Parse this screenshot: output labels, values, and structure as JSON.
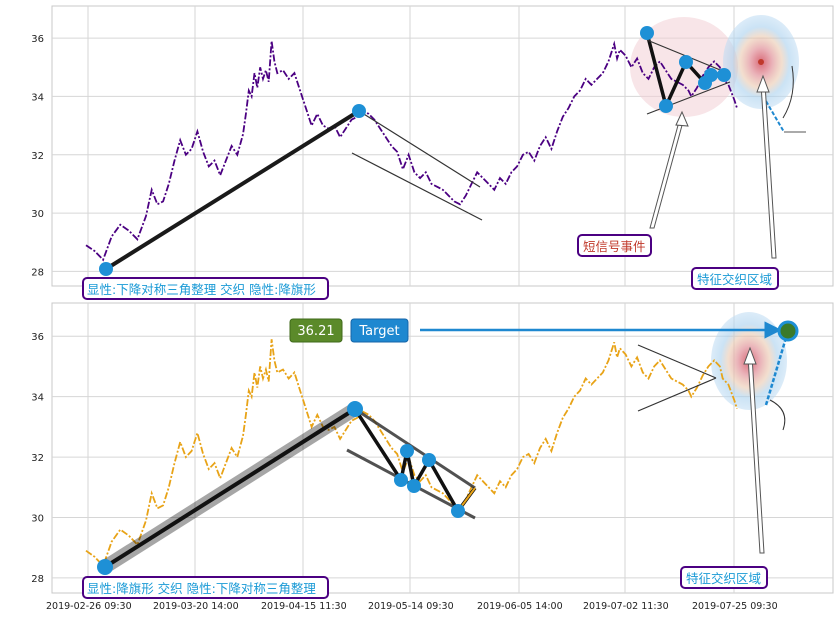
{
  "chart_data": [
    {
      "type": "line",
      "panel": "top",
      "ylim": [
        27.5,
        37.1
      ],
      "yticks": [
        28,
        30,
        32,
        34,
        36
      ],
      "grid": true,
      "series": [
        {
          "color": "#4b0082",
          "style": "dash-dot",
          "points": [
            [
              0,
              28.9
            ],
            [
              6,
              28.7
            ],
            [
              12,
              28.4
            ],
            [
              18,
              29.2
            ],
            [
              24,
              29.6
            ],
            [
              30,
              29.4
            ],
            [
              36,
              29.1
            ],
            [
              42,
              29.9
            ],
            [
              46,
              30.8
            ],
            [
              50,
              30.3
            ],
            [
              54,
              30.4
            ],
            [
              58,
              31.0
            ],
            [
              62,
              31.8
            ],
            [
              66,
              32.5
            ],
            [
              70,
              32.0
            ],
            [
              74,
              32.2
            ],
            [
              78,
              32.8
            ],
            [
              82,
              32.1
            ],
            [
              86,
              31.6
            ],
            [
              90,
              31.8
            ],
            [
              94,
              31.3
            ],
            [
              98,
              31.8
            ],
            [
              102,
              32.3
            ],
            [
              106,
              32.0
            ],
            [
              110,
              32.7
            ],
            [
              112,
              33.4
            ],
            [
              114,
              34.2
            ],
            [
              116,
              34.0
            ],
            [
              118,
              34.8
            ],
            [
              120,
              34.3
            ],
            [
              122,
              35.0
            ],
            [
              124,
              34.6
            ],
            [
              126,
              34.9
            ],
            [
              128,
              34.5
            ],
            [
              130,
              35.9
            ],
            [
              132,
              35.2
            ],
            [
              134,
              34.8
            ],
            [
              138,
              34.9
            ],
            [
              142,
              34.6
            ],
            [
              146,
              34.8
            ],
            [
              150,
              34.2
            ],
            [
              154,
              33.6
            ],
            [
              158,
              33.0
            ],
            [
              162,
              33.4
            ],
            [
              166,
              33.0
            ],
            [
              170,
              32.9
            ],
            [
              174,
              33.0
            ],
            [
              178,
              32.6
            ],
            [
              182,
              32.9
            ],
            [
              186,
              33.2
            ],
            [
              190,
              33.3
            ],
            [
              194,
              33.5
            ],
            [
              198,
              33.4
            ],
            [
              202,
              33.2
            ],
            [
              206,
              32.9
            ],
            [
              210,
              32.6
            ],
            [
              214,
              32.3
            ],
            [
              218,
              32.1
            ],
            [
              222,
              31.5
            ],
            [
              226,
              32.0
            ],
            [
              230,
              31.4
            ],
            [
              234,
              31.2
            ],
            [
              238,
              31.4
            ],
            [
              242,
              31.0
            ],
            [
              246,
              30.9
            ],
            [
              250,
              30.8
            ],
            [
              254,
              30.6
            ],
            [
              258,
              30.4
            ],
            [
              262,
              30.3
            ],
            [
              266,
              30.6
            ],
            [
              270,
              31.0
            ],
            [
              274,
              31.4
            ],
            [
              278,
              31.2
            ],
            [
              282,
              31.0
            ],
            [
              286,
              30.8
            ],
            [
              290,
              31.2
            ],
            [
              294,
              31.0
            ],
            [
              298,
              31.4
            ],
            [
              302,
              31.6
            ],
            [
              306,
              32.0
            ],
            [
              310,
              32.1
            ],
            [
              314,
              31.8
            ],
            [
              318,
              32.3
            ],
            [
              322,
              32.6
            ],
            [
              326,
              32.2
            ],
            [
              330,
              32.8
            ],
            [
              334,
              33.3
            ],
            [
              338,
              33.6
            ],
            [
              342,
              34.0
            ],
            [
              346,
              34.2
            ],
            [
              350,
              34.6
            ],
            [
              354,
              34.4
            ],
            [
              358,
              34.6
            ],
            [
              362,
              34.8
            ],
            [
              366,
              35.2
            ],
            [
              370,
              35.8
            ],
            [
              372,
              35.3
            ],
            [
              374,
              35.6
            ],
            [
              378,
              35.4
            ],
            [
              382,
              35.0
            ],
            [
              386,
              35.3
            ],
            [
              390,
              34.8
            ],
            [
              394,
              34.6
            ],
            [
              398,
              35.0
            ],
            [
              402,
              35.2
            ],
            [
              406,
              34.9
            ],
            [
              410,
              34.6
            ],
            [
              414,
              34.5
            ],
            [
              418,
              34.4
            ],
            [
              422,
              34.2
            ],
            [
              424,
              34.0
            ],
            [
              428,
              34.3
            ],
            [
              432,
              34.7
            ],
            [
              436,
              35.0
            ],
            [
              440,
              35.2
            ],
            [
              444,
              35.0
            ],
            [
              446,
              34.6
            ],
            [
              450,
              34.4
            ],
            [
              454,
              33.9
            ],
            [
              456,
              33.6
            ]
          ]
        }
      ],
      "annotations": {
        "top_label": "显性:下降对称三角整理 交织 隐性:降旗形",
        "short_signal_label": "短信号事件",
        "zone_label": "特征交织区域"
      }
    },
    {
      "type": "line",
      "panel": "bottom",
      "ylim": [
        27.5,
        37.1
      ],
      "yticks": [
        28,
        30,
        32,
        34,
        36
      ],
      "grid": true,
      "series": [
        {
          "color": "#e8a317",
          "style": "dash-dot",
          "points": [
            [
              0,
              28.9
            ],
            [
              6,
              28.7
            ],
            [
              12,
              28.4
            ],
            [
              18,
              29.2
            ],
            [
              24,
              29.6
            ],
            [
              30,
              29.4
            ],
            [
              36,
              29.1
            ],
            [
              42,
              29.9
            ],
            [
              46,
              30.8
            ],
            [
              50,
              30.3
            ],
            [
              54,
              30.4
            ],
            [
              58,
              31.0
            ],
            [
              62,
              31.8
            ],
            [
              66,
              32.5
            ],
            [
              70,
              32.0
            ],
            [
              74,
              32.2
            ],
            [
              78,
              32.8
            ],
            [
              82,
              32.1
            ],
            [
              86,
              31.6
            ],
            [
              90,
              31.8
            ],
            [
              94,
              31.3
            ],
            [
              98,
              31.8
            ],
            [
              102,
              32.3
            ],
            [
              106,
              32.0
            ],
            [
              110,
              32.7
            ],
            [
              112,
              33.4
            ],
            [
              114,
              34.2
            ],
            [
              116,
              34.0
            ],
            [
              118,
              34.8
            ],
            [
              120,
              34.3
            ],
            [
              122,
              35.0
            ],
            [
              124,
              34.6
            ],
            [
              126,
              34.9
            ],
            [
              128,
              34.5
            ],
            [
              130,
              35.9
            ],
            [
              132,
              35.2
            ],
            [
              134,
              34.8
            ],
            [
              138,
              34.9
            ],
            [
              142,
              34.6
            ],
            [
              146,
              34.8
            ],
            [
              150,
              34.2
            ],
            [
              154,
              33.6
            ],
            [
              158,
              33.0
            ],
            [
              162,
              33.4
            ],
            [
              166,
              33.0
            ],
            [
              170,
              32.9
            ],
            [
              174,
              33.0
            ],
            [
              178,
              32.6
            ],
            [
              182,
              32.9
            ],
            [
              186,
              33.2
            ],
            [
              190,
              33.3
            ],
            [
              194,
              33.5
            ],
            [
              198,
              33.4
            ],
            [
              202,
              33.2
            ],
            [
              206,
              32.9
            ],
            [
              210,
              32.6
            ],
            [
              214,
              32.3
            ],
            [
              218,
              32.1
            ],
            [
              222,
              31.5
            ],
            [
              226,
              32.0
            ],
            [
              230,
              31.4
            ],
            [
              234,
              31.2
            ],
            [
              238,
              31.4
            ],
            [
              242,
              31.0
            ],
            [
              246,
              30.9
            ],
            [
              250,
              30.8
            ],
            [
              254,
              30.6
            ],
            [
              258,
              30.4
            ],
            [
              262,
              30.3
            ],
            [
              266,
              30.6
            ],
            [
              270,
              31.0
            ],
            [
              274,
              31.4
            ],
            [
              278,
              31.2
            ],
            [
              282,
              31.0
            ],
            [
              286,
              30.8
            ],
            [
              290,
              31.2
            ],
            [
              294,
              31.0
            ],
            [
              298,
              31.4
            ],
            [
              302,
              31.6
            ],
            [
              306,
              32.0
            ],
            [
              310,
              32.1
            ],
            [
              314,
              31.8
            ],
            [
              318,
              32.3
            ],
            [
              322,
              32.6
            ],
            [
              326,
              32.2
            ],
            [
              330,
              32.8
            ],
            [
              334,
              33.3
            ],
            [
              338,
              33.6
            ],
            [
              342,
              34.0
            ],
            [
              346,
              34.2
            ],
            [
              350,
              34.6
            ],
            [
              354,
              34.4
            ],
            [
              358,
              34.6
            ],
            [
              362,
              34.8
            ],
            [
              366,
              35.2
            ],
            [
              370,
              35.8
            ],
            [
              372,
              35.3
            ],
            [
              374,
              35.6
            ],
            [
              378,
              35.4
            ],
            [
              382,
              35.0
            ],
            [
              386,
              35.3
            ],
            [
              390,
              34.8
            ],
            [
              394,
              34.6
            ],
            [
              398,
              35.0
            ],
            [
              402,
              35.2
            ],
            [
              406,
              34.9
            ],
            [
              410,
              34.6
            ],
            [
              414,
              34.5
            ],
            [
              418,
              34.4
            ],
            [
              422,
              34.2
            ],
            [
              424,
              34.0
            ],
            [
              428,
              34.3
            ],
            [
              432,
              34.7
            ],
            [
              436,
              35.0
            ],
            [
              440,
              35.2
            ],
            [
              444,
              35.0
            ],
            [
              446,
              34.6
            ],
            [
              450,
              34.4
            ],
            [
              454,
              33.9
            ],
            [
              456,
              33.6
            ]
          ]
        }
      ],
      "annotations": {
        "bottom_label": "显性:降旗形 交织 隐性:下降对称三角整理",
        "price_badge": "36.21",
        "target_badge": "Target",
        "zone_label": "特征交织区域"
      }
    }
  ],
  "xaxis": {
    "tick_labels": [
      "2019-02-26 09:30",
      "2019-03-20 14:00",
      "2019-04-15 11:30",
      "2019-05-14 09:30",
      "2019-06-05 14:00",
      "2019-07-02 11:30",
      "2019-07-25 09:30"
    ]
  },
  "yaxis": {
    "tick_labels": [
      "28",
      "30",
      "32",
      "34",
      "36"
    ]
  },
  "colors": {
    "top_line": "#4b0082",
    "bottom_line": "#e8a317",
    "marker": "#1e90d6",
    "label_text": "#1a9ad6",
    "label_border": "#4b0082",
    "price_badge_bg": "#5b8a2a",
    "target_badge_bg": "#1e88d0",
    "signal_text": "#c0392b"
  }
}
